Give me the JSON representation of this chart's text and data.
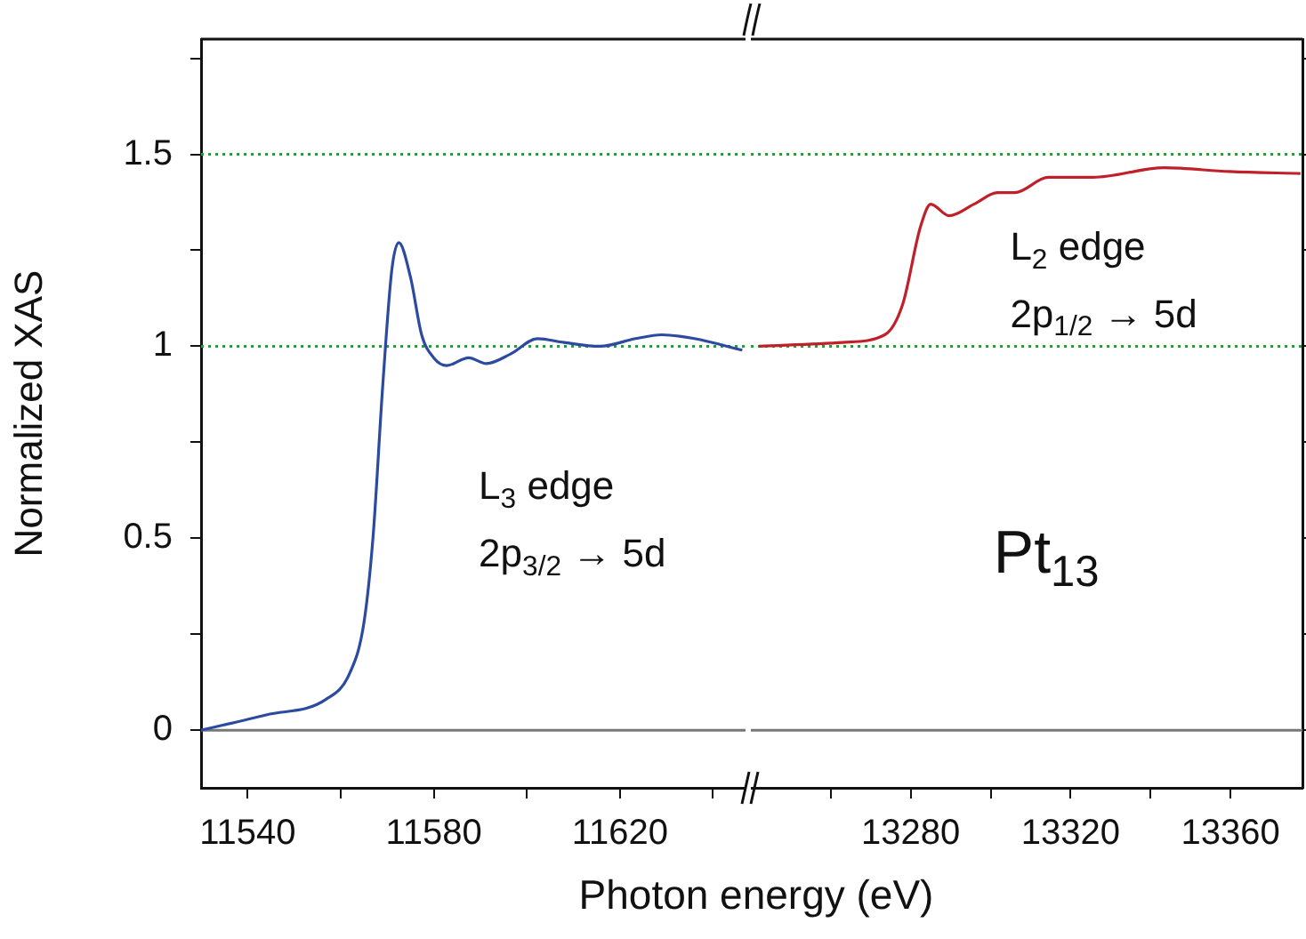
{
  "chart_data": [
    {
      "type": "line",
      "ylabel": "Normalized XAS",
      "xlabel": "Photon energy (eV)",
      "xlim": [
        11530,
        11647
      ],
      "xticks": [
        11540,
        {
          "value": 11560,
          "label": null
        },
        11580,
        {
          "value": 11600,
          "label": null
        },
        11620,
        {
          "value": 11640,
          "label": null
        }
      ],
      "ylim": [
        -0.15,
        1.8
      ],
      "yticks": [
        0,
        {
          "value": 0.25,
          "label": null
        },
        0.5,
        {
          "value": 0.75,
          "label": null
        },
        1,
        {
          "value": 1.25,
          "label": null
        },
        1.5,
        {
          "value": 1.75,
          "label": null
        }
      ],
      "grid": false,
      "legend": false,
      "marker": "none",
      "line_style": "solid",
      "series": [
        {
          "color": "#2b4aa0",
          "x": [
            11530,
            11544,
            11556.8,
            11562,
            11565,
            11567,
            11569,
            11571,
            11572.5,
            11575,
            11577.4,
            11580,
            11582.8,
            11587.5,
            11591.3,
            11596.5,
            11602.3,
            11608,
            11615.7,
            11623.4,
            11629,
            11636,
            11646.3
          ],
          "values": [
            0,
            0.04,
            0.08,
            0.15,
            0.28,
            0.51,
            0.89,
            1.2,
            1.27,
            1.18,
            1.03,
            0.97,
            0.95,
            0.97,
            0.955,
            0.98,
            1.02,
            1.01,
            1.0,
            1.02,
            1.03,
            1.02,
            0.99
          ]
        }
      ],
      "ref_lines": [
        {
          "axis": "y",
          "value": 0,
          "color": "#777777",
          "line_style": "solid"
        },
        {
          "axis": "y",
          "value": 1,
          "color": "#2a9a3a",
          "line_style": "dotted"
        },
        {
          "axis": "y",
          "value": 1.5,
          "color": "#2a9a3a",
          "line_style": "dotted"
        }
      ],
      "annotations": [
        "L$_{3}$ edge",
        "2p$_{3/2}$ → 5d"
      ]
    },
    {
      "type": "line",
      "xlim": [
        13240,
        13378
      ],
      "xticks": [
        {
          "value": 13260,
          "label": null
        },
        13280,
        {
          "value": 13300,
          "label": null
        },
        13320,
        {
          "value": 13340,
          "label": null
        },
        13360
      ],
      "ylim": [
        -0.15,
        1.8
      ],
      "yticks": [
        0,
        {
          "value": 0.25,
          "label": null
        },
        0.5,
        {
          "value": 0.75,
          "label": null
        },
        1,
        {
          "value": 1.25,
          "label": null
        },
        1.5,
        {
          "value": 1.75,
          "label": null
        }
      ],
      "tick_labels": "x",
      "grid": false,
      "legend": false,
      "marker": "none",
      "line_style": "solid",
      "series": [
        {
          "color": "#c0202a",
          "x": [
            13242,
            13263,
            13273.5,
            13278,
            13282.4,
            13285,
            13289.6,
            13295.8,
            13301.7,
            13306,
            13314.4,
            13325.6,
            13343.4,
            13359.8,
            13377.5
          ],
          "values": [
            1.0,
            1.01,
            1.03,
            1.11,
            1.31,
            1.37,
            1.34,
            1.37,
            1.4,
            1.4,
            1.44,
            1.44,
            1.465,
            1.455,
            1.45
          ]
        }
      ],
      "ref_lines": [
        {
          "axis": "y",
          "value": 0,
          "color": "#777777",
          "line_style": "solid"
        },
        {
          "axis": "y",
          "value": 1,
          "color": "#2a9a3a",
          "line_style": "dotted"
        },
        {
          "axis": "y",
          "value": 1.5,
          "color": "#2a9a3a",
          "line_style": "dotted"
        }
      ],
      "annotations": [
        "L$_{2}$ edge",
        "2p$_{1/2}$ → 5d",
        "Pt$_{13}$"
      ]
    }
  ]
}
